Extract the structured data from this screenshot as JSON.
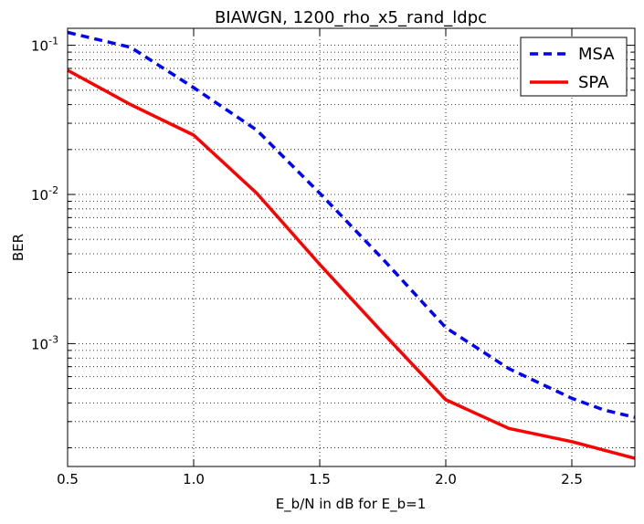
{
  "chart_data": {
    "type": "line",
    "title": "BIAWGN, 1200_rho_x5_rand_ldpc",
    "xlabel": "E_b/N in dB for E_b=1",
    "ylabel": "BER",
    "xlim": [
      0.5,
      2.75
    ],
    "ylim": [
      0.00015,
      0.13
    ],
    "yscale": "log",
    "grid": true,
    "legend_position": "top-right",
    "x_ticks": [
      "0.5",
      "1.0",
      "1.5",
      "2.0",
      "2.5"
    ],
    "y_ticks": [
      {
        "base": "10",
        "exp": "-1"
      },
      {
        "base": "10",
        "exp": "-2"
      },
      {
        "base": "10",
        "exp": "-3"
      }
    ],
    "series": [
      {
        "name": "MSA",
        "color": "#0000ff",
        "style": "dashed",
        "x": [
          0.5,
          0.75,
          1.0,
          1.25,
          1.5,
          1.75,
          2.0,
          2.25,
          2.5,
          2.625,
          2.75
        ],
        "y": [
          0.122,
          0.097,
          0.052,
          0.027,
          0.0102,
          0.0037,
          0.00128,
          0.00068,
          0.00043,
          0.00036,
          0.00032
        ]
      },
      {
        "name": "SPA",
        "color": "#ff0000",
        "style": "solid",
        "x": [
          0.5,
          0.75,
          1.0,
          1.25,
          1.5,
          1.75,
          2.0,
          2.25,
          2.5,
          2.75
        ],
        "y": [
          0.068,
          0.04,
          0.025,
          0.0102,
          0.0034,
          0.00118,
          0.00042,
          0.00027,
          0.00022,
          0.00017
        ]
      }
    ]
  }
}
